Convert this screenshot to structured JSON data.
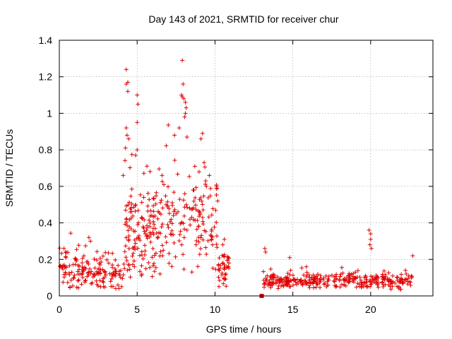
{
  "chart_data": {
    "type": "scatter",
    "title": "Day 143 of 2021, SRMTID for receiver chur",
    "xlabel": "GPS time / hours",
    "ylabel": "SRMTID / TECUs",
    "xlim": [
      0,
      24
    ],
    "ylim": [
      0,
      1.4
    ],
    "xticks": [
      0,
      5,
      10,
      15,
      20
    ],
    "yticks": [
      0,
      0.2,
      0.4,
      0.6,
      0.8,
      1,
      1.2,
      1.4
    ],
    "xtick_labels": [
      "0",
      "5",
      "10",
      "15",
      "20"
    ],
    "ytick_labels": [
      "0",
      "0.2",
      "0.4",
      "0.6",
      "0.8",
      "1",
      "1.2",
      "1.4"
    ],
    "grid": true,
    "marker": "+",
    "color": "#e00000",
    "series": [
      {
        "name": "SRMTID",
        "segments": [
          {
            "x_start": 0.0,
            "x_end": 4.2,
            "y_base": 0.13,
            "y_spread": 0.07,
            "y_min": 0.04,
            "density": 160
          },
          {
            "x_start": 4.2,
            "x_end": 6.5,
            "y_base": 0.35,
            "y_spread": 0.2,
            "y_min": 0.1,
            "density": 150
          },
          {
            "x_start": 6.5,
            "x_end": 10.2,
            "y_base": 0.38,
            "y_spread": 0.2,
            "y_min": 0.06,
            "density": 150
          },
          {
            "x_start": 10.2,
            "x_end": 10.9,
            "y_base": 0.15,
            "y_spread": 0.07,
            "y_min": 0.03,
            "density": 40
          },
          {
            "x_start": 13.1,
            "x_end": 22.7,
            "y_base": 0.08,
            "y_spread": 0.03,
            "y_min": 0.02,
            "density": 340
          }
        ],
        "peaks": [
          {
            "x": 4.3,
            "y": 1.24
          },
          {
            "x": 4.4,
            "y": 1.17
          },
          {
            "x": 4.3,
            "y": 1.16
          },
          {
            "x": 4.4,
            "y": 1.12
          },
          {
            "x": 4.3,
            "y": 0.92
          },
          {
            "x": 4.35,
            "y": 0.88
          },
          {
            "x": 5.0,
            "y": 1.1
          },
          {
            "x": 5.05,
            "y": 1.05
          },
          {
            "x": 5.0,
            "y": 0.95
          },
          {
            "x": 5.0,
            "y": 0.8
          },
          {
            "x": 4.9,
            "y": 0.77
          },
          {
            "x": 4.25,
            "y": 0.81
          },
          {
            "x": 7.9,
            "y": 1.29
          },
          {
            "x": 7.95,
            "y": 1.16
          },
          {
            "x": 7.85,
            "y": 1.1
          },
          {
            "x": 7.9,
            "y": 1.09
          },
          {
            "x": 8.0,
            "y": 1.08
          },
          {
            "x": 8.1,
            "y": 1.06
          },
          {
            "x": 8.15,
            "y": 1.03
          },
          {
            "x": 8.1,
            "y": 1.0
          },
          {
            "x": 8.05,
            "y": 0.98
          },
          {
            "x": 7.7,
            "y": 0.92
          },
          {
            "x": 8.2,
            "y": 0.87
          },
          {
            "x": 7.4,
            "y": 0.88
          },
          {
            "x": 9.1,
            "y": 0.86
          },
          {
            "x": 9.2,
            "y": 0.89
          },
          {
            "x": 9.3,
            "y": 0.73
          },
          {
            "x": 6.6,
            "y": 0.66
          },
          {
            "x": 4.1,
            "y": 0.66
          },
          {
            "x": 19.9,
            "y": 0.36
          },
          {
            "x": 20.0,
            "y": 0.34
          },
          {
            "x": 20.0,
            "y": 0.31
          },
          {
            "x": 19.95,
            "y": 0.28
          },
          {
            "x": 20.05,
            "y": 0.26
          },
          {
            "x": 1.9,
            "y": 0.32
          },
          {
            "x": 2.0,
            "y": 0.3
          },
          {
            "x": 13.2,
            "y": 0.26
          },
          {
            "x": 13.25,
            "y": 0.24
          },
          {
            "x": 14.8,
            "y": 0.21
          },
          {
            "x": 22.7,
            "y": 0.22
          },
          {
            "x": 0.3,
            "y": 0.26
          },
          {
            "x": 0.4,
            "y": 0.24
          },
          {
            "x": 10.6,
            "y": 0.31
          },
          {
            "x": 10.5,
            "y": 0.28
          },
          {
            "x": 9.4,
            "y": 0.63
          },
          {
            "x": 9.45,
            "y": 0.6
          },
          {
            "x": 8.6,
            "y": 0.58
          }
        ],
        "square_markers": [
          {
            "x": 13.0,
            "y": 0.0
          }
        ]
      }
    ]
  }
}
